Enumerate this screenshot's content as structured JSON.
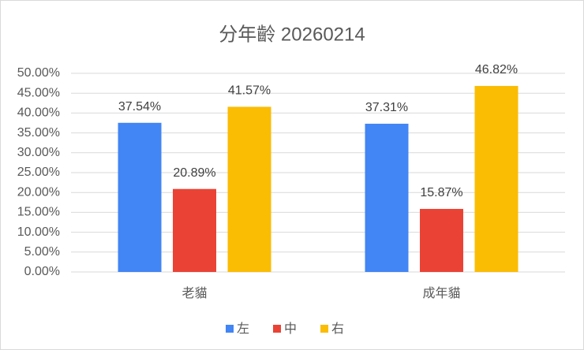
{
  "chart_data": {
    "type": "bar",
    "title": "分年齡 20260214",
    "categories": [
      "老貓",
      "成年貓"
    ],
    "series": [
      {
        "name": "左",
        "color": "#4285f4",
        "values": [
          37.54,
          37.31
        ],
        "value_labels": [
          "37.54%",
          "37.31%"
        ]
      },
      {
        "name": "中",
        "color": "#ea4335",
        "values": [
          20.89,
          15.87
        ],
        "value_labels": [
          "20.89%",
          "15.87%"
        ]
      },
      {
        "name": "右",
        "color": "#fbbc04",
        "values": [
          41.57,
          46.82
        ],
        "value_labels": [
          "41.57%",
          "46.82%"
        ]
      }
    ],
    "ylim": [
      0,
      50
    ],
    "yticks": [
      {
        "value": 0,
        "label": "0.00%"
      },
      {
        "value": 5,
        "label": "5.00%"
      },
      {
        "value": 10,
        "label": "10.00%"
      },
      {
        "value": 15,
        "label": "15.00%"
      },
      {
        "value": 20,
        "label": "20.00%"
      },
      {
        "value": 25,
        "label": "25.00%"
      },
      {
        "value": 30,
        "label": "30.00%"
      },
      {
        "value": 35,
        "label": "35.00%"
      },
      {
        "value": 40,
        "label": "40.00%"
      },
      {
        "value": 45,
        "label": "45.00%"
      },
      {
        "value": 50,
        "label": "50.00%"
      }
    ],
    "grid": true,
    "legend": "bottom"
  }
}
